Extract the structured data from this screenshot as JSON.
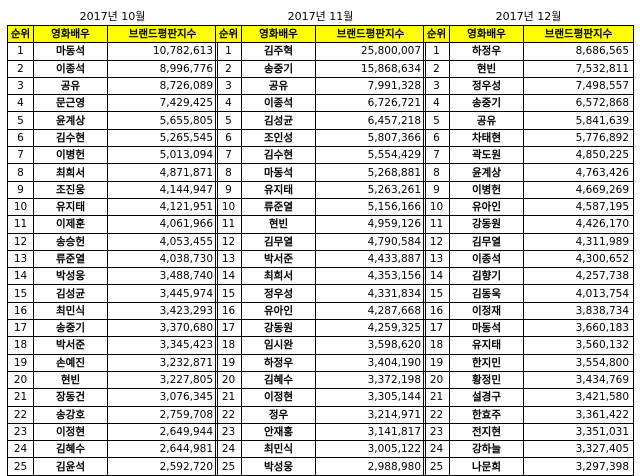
{
  "header_labels": {
    "rank": "순위",
    "actor": "영화배우",
    "index": "브랜드평판지수"
  },
  "colors": {
    "header_bg": "#FFFF00",
    "border": "#000000"
  },
  "panels": [
    {
      "title": "2017년 10월",
      "rows": [
        {
          "rank": "1",
          "name": "마동석",
          "score": "10,782,613"
        },
        {
          "rank": "2",
          "name": "이종석",
          "score": "8,996,776"
        },
        {
          "rank": "3",
          "name": "공유",
          "score": "8,726,089"
        },
        {
          "rank": "4",
          "name": "문근영",
          "score": "7,429,425"
        },
        {
          "rank": "5",
          "name": "윤계상",
          "score": "5,655,805"
        },
        {
          "rank": "6",
          "name": "김수현",
          "score": "5,265,545"
        },
        {
          "rank": "7",
          "name": "이병헌",
          "score": "5,013,094"
        },
        {
          "rank": "8",
          "name": "최희서",
          "score": "4,871,871"
        },
        {
          "rank": "9",
          "name": "조진웅",
          "score": "4,144,947"
        },
        {
          "rank": "10",
          "name": "유지태",
          "score": "4,121,951"
        },
        {
          "rank": "11",
          "name": "이제훈",
          "score": "4,061,966"
        },
        {
          "rank": "12",
          "name": "송승헌",
          "score": "4,053,455"
        },
        {
          "rank": "13",
          "name": "류준열",
          "score": "4,038,730"
        },
        {
          "rank": "14",
          "name": "박성웅",
          "score": "3,488,740"
        },
        {
          "rank": "15",
          "name": "김성균",
          "score": "3,445,974"
        },
        {
          "rank": "16",
          "name": "최민식",
          "score": "3,423,293"
        },
        {
          "rank": "17",
          "name": "송중기",
          "score": "3,370,680"
        },
        {
          "rank": "18",
          "name": "박서준",
          "score": "3,345,423"
        },
        {
          "rank": "19",
          "name": "손예진",
          "score": "3,232,871"
        },
        {
          "rank": "20",
          "name": "현빈",
          "score": "3,227,805"
        },
        {
          "rank": "21",
          "name": "장동건",
          "score": "3,076,345"
        },
        {
          "rank": "22",
          "name": "송강호",
          "score": "2,759,708"
        },
        {
          "rank": "23",
          "name": "이정현",
          "score": "2,649,944"
        },
        {
          "rank": "24",
          "name": "김혜수",
          "score": "2,644,981"
        },
        {
          "rank": "25",
          "name": "김윤석",
          "score": "2,592,720"
        }
      ]
    },
    {
      "title": "2017년 11월",
      "rows": [
        {
          "rank": "1",
          "name": "김주혁",
          "score": "25,800,007"
        },
        {
          "rank": "2",
          "name": "송중기",
          "score": "15,868,634"
        },
        {
          "rank": "3",
          "name": "공유",
          "score": "7,991,328"
        },
        {
          "rank": "4",
          "name": "이종석",
          "score": "6,726,721"
        },
        {
          "rank": "5",
          "name": "김성균",
          "score": "6,457,218"
        },
        {
          "rank": "6",
          "name": "조인성",
          "score": "5,807,366"
        },
        {
          "rank": "7",
          "name": "김수현",
          "score": "5,554,429"
        },
        {
          "rank": "8",
          "name": "마동석",
          "score": "5,268,881"
        },
        {
          "rank": "9",
          "name": "유지태",
          "score": "5,263,261"
        },
        {
          "rank": "10",
          "name": "류준열",
          "score": "5,156,166"
        },
        {
          "rank": "11",
          "name": "현빈",
          "score": "4,959,126"
        },
        {
          "rank": "12",
          "name": "김무열",
          "score": "4,790,584"
        },
        {
          "rank": "13",
          "name": "박서준",
          "score": "4,433,887"
        },
        {
          "rank": "14",
          "name": "최희서",
          "score": "4,353,156"
        },
        {
          "rank": "15",
          "name": "정우성",
          "score": "4,331,834"
        },
        {
          "rank": "16",
          "name": "유아인",
          "score": "4,287,668"
        },
        {
          "rank": "17",
          "name": "강동원",
          "score": "4,259,325"
        },
        {
          "rank": "18",
          "name": "임시완",
          "score": "3,598,620"
        },
        {
          "rank": "19",
          "name": "하정우",
          "score": "3,404,190"
        },
        {
          "rank": "20",
          "name": "김혜수",
          "score": "3,372,198"
        },
        {
          "rank": "21",
          "name": "이정현",
          "score": "3,305,144"
        },
        {
          "rank": "22",
          "name": "정우",
          "score": "3,214,971"
        },
        {
          "rank": "23",
          "name": "안재홍",
          "score": "3,141,817"
        },
        {
          "rank": "24",
          "name": "최민식",
          "score": "3,005,122"
        },
        {
          "rank": "25",
          "name": "박성웅",
          "score": "2,988,980"
        }
      ]
    },
    {
      "title": "2017년 12월",
      "rows": [
        {
          "rank": "1",
          "name": "하정우",
          "score": "8,686,565"
        },
        {
          "rank": "2",
          "name": "현빈",
          "score": "7,532,811"
        },
        {
          "rank": "3",
          "name": "정우성",
          "score": "7,498,557"
        },
        {
          "rank": "4",
          "name": "송중기",
          "score": "6,572,868"
        },
        {
          "rank": "5",
          "name": "공유",
          "score": "5,841,639"
        },
        {
          "rank": "6",
          "name": "차태현",
          "score": "5,776,892"
        },
        {
          "rank": "7",
          "name": "곽도원",
          "score": "4,850,225"
        },
        {
          "rank": "8",
          "name": "윤계상",
          "score": "4,763,426"
        },
        {
          "rank": "9",
          "name": "이병헌",
          "score": "4,669,269"
        },
        {
          "rank": "10",
          "name": "유아인",
          "score": "4,587,195"
        },
        {
          "rank": "11",
          "name": "강동원",
          "score": "4,426,170"
        },
        {
          "rank": "12",
          "name": "김무열",
          "score": "4,311,989"
        },
        {
          "rank": "13",
          "name": "이종석",
          "score": "4,300,652"
        },
        {
          "rank": "14",
          "name": "김향기",
          "score": "4,257,738"
        },
        {
          "rank": "15",
          "name": "김동욱",
          "score": "4,013,754"
        },
        {
          "rank": "16",
          "name": "이정재",
          "score": "3,838,734"
        },
        {
          "rank": "17",
          "name": "마동석",
          "score": "3,660,183"
        },
        {
          "rank": "18",
          "name": "유지태",
          "score": "3,560,132"
        },
        {
          "rank": "19",
          "name": "한지민",
          "score": "3,554,800"
        },
        {
          "rank": "20",
          "name": "황정민",
          "score": "3,434,769"
        },
        {
          "rank": "21",
          "name": "설경구",
          "score": "3,421,580"
        },
        {
          "rank": "22",
          "name": "한효주",
          "score": "3,361,422"
        },
        {
          "rank": "23",
          "name": "전지현",
          "score": "3,351,031"
        },
        {
          "rank": "24",
          "name": "강하늘",
          "score": "3,327,405"
        },
        {
          "rank": "25",
          "name": "나문희",
          "score": "3,297,398"
        }
      ]
    }
  ]
}
